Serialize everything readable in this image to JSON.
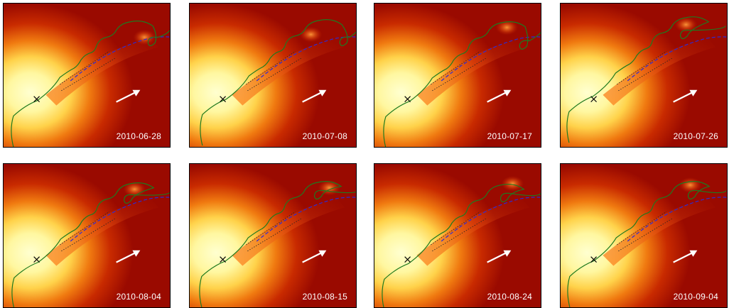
{
  "panels": [
    {
      "date": "2010-06-28"
    },
    {
      "date": "2010-07-08"
    },
    {
      "date": "2010-07-17"
    },
    {
      "date": "2010-07-26"
    },
    {
      "date": "2010-08-04"
    },
    {
      "date": "2010-08-15"
    },
    {
      "date": "2010-08-24"
    },
    {
      "date": "2010-09-04"
    }
  ],
  "colors": {
    "core": "#ffffd0",
    "glow": "#ffd24a",
    "background": "#9a0a00",
    "jet_model": "#1f7a1f",
    "dashed_path": "#2b2bd6",
    "arrow": "#ffffff",
    "marker": "#000000"
  }
}
